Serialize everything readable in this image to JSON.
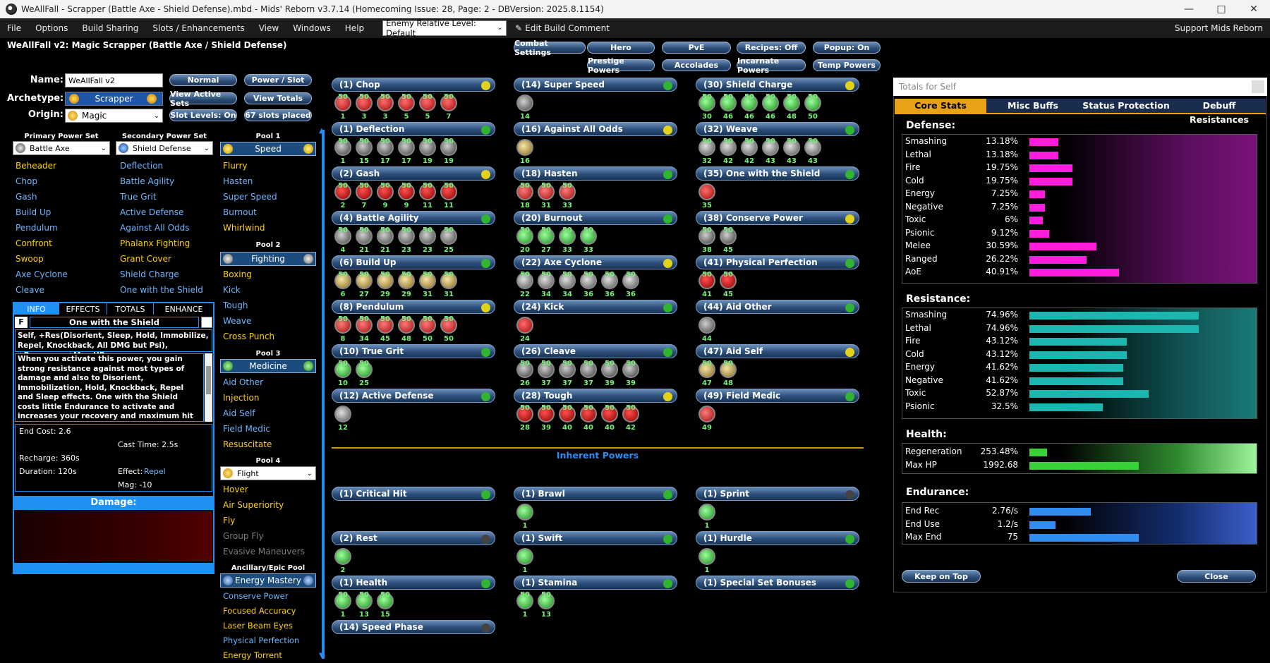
{
  "window": {
    "title": "WeAllFall - Scrapper (Battle Axe - Shield Defense).mbd - Mids' Reborn v3.7.14  (Homecoming Issue: 28, Page: 2 - DBVersion: 2025.8.1154)"
  },
  "menu": {
    "items": [
      "File",
      "Options",
      "Build Sharing",
      "Slots / Enhancements",
      "View",
      "Windows",
      "Help"
    ],
    "level_select": "Enemy Relative Level: Default",
    "edit_comment": "Edit Build Comment",
    "support": "Support Mids Reborn"
  },
  "build_title": "WeAllFall v2: Magic Scrapper (Battle Axe / Shield Defense)",
  "top_buttons": [
    "Combat Settings",
    "Hero",
    "PvE",
    "Recipes: Off",
    "Popup: On",
    "Prestige Powers",
    "Accolades",
    "Incarnate Powers",
    "Temp Powers"
  ],
  "char": {
    "name_label": "Name:",
    "name": "WeAllFall v2",
    "archetype_label": "Archetype:",
    "archetype": "Scrapper",
    "origin_label": "Origin:",
    "origin": "Magic",
    "buttons": [
      "Normal",
      "Power / Slot",
      "View Active Sets",
      "View Totals",
      "Slot Levels: On",
      "67 slots placed"
    ]
  },
  "primary": {
    "header": "Primary Power Set",
    "set": "Battle Axe",
    "powers": [
      "Beheader",
      "Chop",
      "Gash",
      "Build Up",
      "Pendulum",
      "Confront",
      "Swoop",
      "Axe Cyclone",
      "Cleave"
    ]
  },
  "secondary": {
    "header": "Secondary Power Set",
    "set": "Shield Defense",
    "powers": [
      "Deflection",
      "Battle Agility",
      "True Grit",
      "Active Defense",
      "Against All Odds",
      "Phalanx Fighting",
      "Grant Cover",
      "Shield Charge",
      "One with the Shield"
    ]
  },
  "pools": [
    {
      "header": "Pool 1",
      "name": "Speed",
      "powers": [
        "Flurry",
        "Hasten",
        "Super Speed",
        "Burnout",
        "Whirlwind"
      ]
    },
    {
      "header": "Pool 2",
      "name": "Fighting",
      "powers": [
        "Boxing",
        "Kick",
        "Tough",
        "Weave",
        "Cross Punch"
      ]
    },
    {
      "header": "Pool 3",
      "name": "Medicine",
      "powers": [
        "Aid Other",
        "Injection",
        "Aid Self",
        "Field Medic",
        "Resuscitate"
      ]
    },
    {
      "header": "Pool 4",
      "name": "Flight",
      "powers": [
        "Hover",
        "Air Superiority",
        "Fly",
        "Group Fly",
        "Evasive Maneuvers"
      ]
    },
    {
      "header": "Ancillary/Epic Pool",
      "name": "Energy Mastery",
      "powers": [
        "Conserve Power",
        "Focused Accuracy",
        "Laser Beam Eyes",
        "Physical Perfection",
        "Energy Torrent"
      ]
    }
  ],
  "info": {
    "tabs": [
      "INFO",
      "EFFECTS",
      "TOTALS",
      "ENHANCE"
    ],
    "flag": "F",
    "power_name": "One with the Shield",
    "short": "Self, +Res(Disorient, Sleep, Hold, Immobilize, Repel, Knockback, All DMG but Psi), +Recovery, +Max HP",
    "desc": "When you activate this power, you gain strong resistance against most types of damage and also to Disorient, Immobilization, Hold, Knockback, Repel and Sleep effects. One with the Shield costs little Endurance to activate and increases your recovery and maximum hit points for its duration, but when it wears off you are left",
    "end_cost": "End Cost: 2.6",
    "cast_time": "Cast Time: 2.5s",
    "recharge": "Recharge: 360s",
    "duration": "Duration: 120s",
    "effect_label": "Effect:",
    "effect": "Repel",
    "mag": "Mag: -10",
    "damage_label": "Damage:"
  },
  "inherent_label": "Inherent Powers",
  "build": {
    "col1": [
      {
        "name": "(1) Chop",
        "lvls": [
          "1",
          "3",
          "3",
          "5",
          "5",
          "7"
        ]
      },
      {
        "name": "(1) Deflection",
        "lvls": [
          "1",
          "15",
          "17",
          "17",
          "19",
          "19"
        ]
      },
      {
        "name": "(2) Gash",
        "lvls": [
          "2",
          "7",
          "9",
          "9",
          "11",
          "11"
        ]
      },
      {
        "name": "(4) Battle Agility",
        "lvls": [
          "4",
          "21",
          "21",
          "23",
          "23",
          "25"
        ]
      },
      {
        "name": "(6) Build Up",
        "lvls": [
          "6",
          "27",
          "29",
          "29",
          "31",
          "31"
        ]
      },
      {
        "name": "(8) Pendulum",
        "lvls": [
          "8",
          "34",
          "45",
          "48",
          "50",
          "50"
        ]
      },
      {
        "name": "(10) True Grit",
        "lvls": [
          "10",
          "25"
        ]
      },
      {
        "name": "(12) Active Defense",
        "lvls": [
          "12"
        ]
      }
    ],
    "col2": [
      {
        "name": "(14) Super Speed",
        "lvls": [
          "14"
        ]
      },
      {
        "name": "(16) Against All Odds",
        "lvls": [
          "16"
        ]
      },
      {
        "name": "(18) Hasten",
        "lvls": [
          "18",
          "31",
          "33"
        ]
      },
      {
        "name": "(20) Burnout",
        "lvls": [
          "20",
          "27",
          "33",
          "33"
        ]
      },
      {
        "name": "(22) Axe Cyclone",
        "lvls": [
          "22",
          "34",
          "34",
          "36",
          "36",
          "36"
        ]
      },
      {
        "name": "(24) Kick",
        "lvls": [
          "24"
        ]
      },
      {
        "name": "(26) Cleave",
        "lvls": [
          "26",
          "37",
          "37",
          "37",
          "39",
          "39"
        ]
      },
      {
        "name": "(28) Tough",
        "lvls": [
          "28",
          "39",
          "40",
          "40",
          "40",
          "42"
        ]
      }
    ],
    "col3": [
      {
        "name": "(30) Shield Charge",
        "lvls": [
          "30",
          "46",
          "46",
          "46",
          "48",
          "50"
        ]
      },
      {
        "name": "(32) Weave",
        "lvls": [
          "32",
          "42",
          "42",
          "43",
          "43",
          "43"
        ]
      },
      {
        "name": "(35) One with the Shield",
        "lvls": [
          "35"
        ]
      },
      {
        "name": "(38) Conserve Power",
        "lvls": [
          "38",
          "45"
        ]
      },
      {
        "name": "(41) Physical Perfection",
        "lvls": [
          "41",
          "45"
        ]
      },
      {
        "name": "(44) Aid Other",
        "lvls": [
          "44"
        ]
      },
      {
        "name": "(47) Aid Self",
        "lvls": [
          "47",
          "48"
        ]
      },
      {
        "name": "(49) Field Medic",
        "lvls": [
          "49"
        ]
      }
    ],
    "inherent": [
      {
        "name": "(1) Critical Hit",
        "lvls": []
      },
      {
        "name": "(1) Brawl",
        "lvls": [
          "1"
        ]
      },
      {
        "name": "(1) Sprint",
        "lvls": [
          "1"
        ]
      },
      {
        "name": "(2) Rest",
        "lvls": [
          "2"
        ]
      },
      {
        "name": "(1) Swift",
        "lvls": [
          "1"
        ]
      },
      {
        "name": "(1) Hurdle",
        "lvls": [
          "1"
        ]
      },
      {
        "name": "(1) Health",
        "lvls": [
          "1",
          "13",
          "15"
        ]
      },
      {
        "name": "(1) Stamina",
        "lvls": [
          "1",
          "13"
        ]
      },
      {
        "name": "(1) Special Set Bonuses",
        "lvls": []
      },
      {
        "name": "(14) Speed Phase",
        "lvls": []
      }
    ],
    "enh_label": "50"
  },
  "totals": {
    "title": "Totals for Self",
    "tabs": [
      "Core Stats",
      "Misc Buffs",
      "Status Protection",
      "Debuff Resistances"
    ],
    "defense_label": "Defense:",
    "defense": [
      {
        "name": "Smashing",
        "val": "13.18%",
        "pct": 13.18
      },
      {
        "name": "Lethal",
        "val": "13.18%",
        "pct": 13.18
      },
      {
        "name": "Fire",
        "val": "19.75%",
        "pct": 19.75
      },
      {
        "name": "Cold",
        "val": "19.75%",
        "pct": 19.75
      },
      {
        "name": "Energy",
        "val": "7.25%",
        "pct": 7.25
      },
      {
        "name": "Negative",
        "val": "7.25%",
        "pct": 7.25
      },
      {
        "name": "Toxic",
        "val": "6%",
        "pct": 6
      },
      {
        "name": "Psionic",
        "val": "9.12%",
        "pct": 9.12
      },
      {
        "name": "Melee",
        "val": "30.59%",
        "pct": 30.59
      },
      {
        "name": "Ranged",
        "val": "26.22%",
        "pct": 26.22
      },
      {
        "name": "AoE",
        "val": "40.91%",
        "pct": 40.91
      }
    ],
    "resistance_label": "Resistance:",
    "resistance": [
      {
        "name": "Smashing",
        "val": "74.96%",
        "pct": 74.96
      },
      {
        "name": "Lethal",
        "val": "74.96%",
        "pct": 74.96
      },
      {
        "name": "Fire",
        "val": "43.12%",
        "pct": 43.12
      },
      {
        "name": "Cold",
        "val": "43.12%",
        "pct": 43.12
      },
      {
        "name": "Energy",
        "val": "41.62%",
        "pct": 41.62
      },
      {
        "name": "Negative",
        "val": "41.62%",
        "pct": 41.62
      },
      {
        "name": "Toxic",
        "val": "52.87%",
        "pct": 52.87
      },
      {
        "name": "Psionic",
        "val": "32.5%",
        "pct": 32.5
      }
    ],
    "health_label": "Health:",
    "health": [
      {
        "name": "Regeneration",
        "val": "253.48%",
        "pct": 8
      },
      {
        "name": "Max HP",
        "val": "1992.68",
        "pct": 50
      }
    ],
    "endurance_label": "Endurance:",
    "endurance": [
      {
        "name": "End Rec",
        "val": "2.76/s",
        "pct": 28
      },
      {
        "name": "End Use",
        "val": "1.2/s",
        "pct": 12
      },
      {
        "name": "Max End",
        "val": "75",
        "pct": 50
      }
    ],
    "keep_on_top": "Keep on Top",
    "close": "Close"
  },
  "colors": {
    "defense_bar": "#ff1ddd",
    "resistance_bar": "#1cb6b0",
    "health_bar": "#39d13a",
    "endurance_bar": "#2f8ef0",
    "accent": "#e8a218"
  }
}
